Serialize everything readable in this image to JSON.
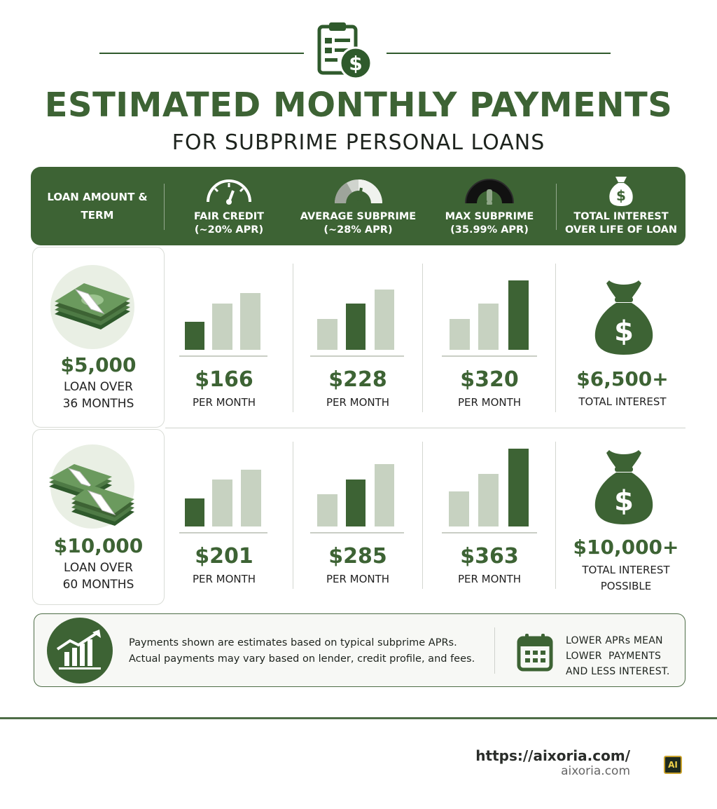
{
  "title": "ESTIMATED MONTHLY PAYMENTS",
  "subtitle": "FOR SUBPRIME PERSONAL LOANS",
  "header": {
    "col1": "LOAN AMOUNT &\nTERM",
    "col2": "FAIR CREDIT\n(~20% APR)",
    "col3": "AVERAGE SUBPRIME\n(~28% APR)",
    "col4": "MAX SUBPRIME\n(35.99% APR)",
    "col5": "TOTAL INTEREST\nOVER LIFE OF LOAN"
  },
  "rows": [
    {
      "amount": "$5,000",
      "term": "LOAN OVER\n36 MONTHS",
      "payments": [
        {
          "price": "$166",
          "label": "PER MONTH",
          "level": [
            0.45,
            0.78,
            0.94
          ]
        },
        {
          "price": "$228",
          "label": "PER MONTH",
          "level": [
            0.5,
            0.78,
            1.0
          ]
        },
        {
          "price": "$320",
          "label": "PER MONTH",
          "level": [
            0.5,
            0.78,
            1.18
          ]
        }
      ],
      "interest": "$6,500+",
      "interest_label": "TOTAL INTEREST"
    },
    {
      "amount": "$10,000",
      "term": "LOAN OVER\n60 MONTHS",
      "payments": [
        {
          "price": "$201",
          "label": "PER MONTH",
          "level": [
            0.45,
            0.78,
            0.94
          ]
        },
        {
          "price": "$285",
          "label": "PER MONTH",
          "level": [
            0.53,
            0.78,
            1.02
          ]
        },
        {
          "price": "$363",
          "label": "PER MONTH",
          "level": [
            0.58,
            0.86,
            1.28
          ]
        }
      ],
      "interest": "$10,000+",
      "interest_label": "TOTAL INTEREST\nPOSSIBLE"
    }
  ],
  "note": "Payments shown are estimates based on typical subprime APRs.\nActual payments may vary based on lender, credit profile, and fees.",
  "note_right": "LOWER APRs MEAN\nLOWER  PAYMENTS\nAND LESS INTEREST.",
  "footer": {
    "url": "https://aixoria.com/",
    "domain": "aixoria.com",
    "badge": "AI"
  },
  "colors": {
    "dark_green": "#3d6334",
    "light_green": "#c7d2c1"
  }
}
